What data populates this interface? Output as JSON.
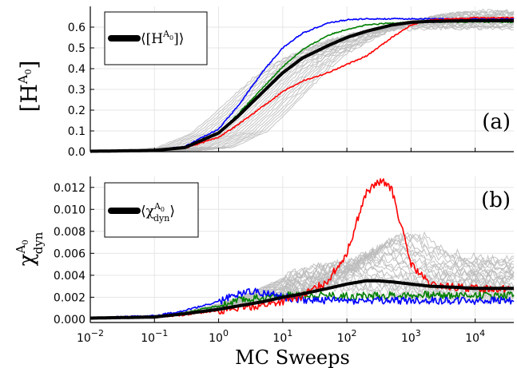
{
  "chart_data": [
    {
      "type": "line",
      "panel_label": "(a)",
      "ylabel": {
        "base": "[H",
        "sup": "A",
        "sub": "0",
        "close": "]"
      },
      "xlabel": "",
      "xscale": "log",
      "xlim": [
        0.01,
        40000
      ],
      "ylim": [
        0,
        0.7
      ],
      "yticks": [
        "0.0",
        "0.1",
        "0.2",
        "0.3",
        "0.4",
        "0.5",
        "0.6"
      ],
      "grid": true,
      "legend": {
        "position": "top-left",
        "label_base": "⟨[H",
        "label_sup": "A",
        "label_sub": "0",
        "label_close": "]⟩",
        "color": "#000000"
      },
      "colors": {
        "mean": "#000000",
        "highlight_red": "#ff0000",
        "highlight_blue": "#0000ff",
        "highlight_green": "#008000",
        "samples": "#bbbbbb"
      },
      "series": [
        {
          "color_key": "mean",
          "x": [
            0.01,
            0.1,
            0.3,
            1,
            2,
            5,
            10,
            20,
            50,
            100,
            200,
            500,
            1000,
            2000,
            5000,
            10000,
            40000
          ],
          "values": [
            0.002,
            0.006,
            0.02,
            0.09,
            0.17,
            0.29,
            0.38,
            0.45,
            0.51,
            0.55,
            0.58,
            0.61,
            0.623,
            0.628,
            0.63,
            0.631,
            0.631
          ]
        },
        {
          "color_key": "highlight_red",
          "x": [
            0.01,
            0.1,
            0.3,
            1,
            2,
            5,
            10,
            20,
            50,
            100,
            200,
            500,
            1000,
            2000,
            5000,
            10000,
            40000
          ],
          "values": [
            0.002,
            0.005,
            0.017,
            0.07,
            0.13,
            0.22,
            0.29,
            0.34,
            0.38,
            0.42,
            0.46,
            0.55,
            0.61,
            0.635,
            0.64,
            0.645,
            0.645
          ]
        },
        {
          "color_key": "highlight_blue",
          "x": [
            0.01,
            0.1,
            0.3,
            1,
            2,
            5,
            10,
            20,
            50,
            100,
            200,
            500,
            1000,
            2000,
            5000,
            10000,
            40000
          ],
          "values": [
            0.002,
            0.007,
            0.025,
            0.11,
            0.22,
            0.39,
            0.5,
            0.57,
            0.62,
            0.635,
            0.64,
            0.64,
            0.64,
            0.64,
            0.64,
            0.64,
            0.64
          ]
        },
        {
          "color_key": "highlight_green",
          "x": [
            0.01,
            0.1,
            0.3,
            1,
            2,
            5,
            10,
            20,
            50,
            100,
            200,
            500,
            1000,
            2000,
            5000,
            10000,
            40000
          ],
          "values": [
            0.002,
            0.006,
            0.021,
            0.09,
            0.18,
            0.31,
            0.41,
            0.49,
            0.56,
            0.59,
            0.61,
            0.62,
            0.625,
            0.625,
            0.625,
            0.625,
            0.625
          ]
        }
      ],
      "sample_bundle": {
        "color_key": "samples",
        "count": 24,
        "upper_shift": 0.45,
        "lower_shift": -0.75,
        "final_low": 0.585,
        "final_high": 0.69
      }
    },
    {
      "type": "line",
      "panel_label": "(b)",
      "ylabel": {
        "base": "χ",
        "sup": "A",
        "sub_sup": "0",
        "sub": "dyn"
      },
      "xlabel": "MC Sweeps",
      "xscale": "log",
      "xlim": [
        0.01,
        40000
      ],
      "ylim": [
        -0.0003,
        0.013
      ],
      "yticks": [
        "0.000",
        "0.002",
        "0.004",
        "0.006",
        "0.008",
        "0.010",
        "0.012"
      ],
      "xticks": [
        {
          "base": "10",
          "exp": "−2"
        },
        {
          "base": "10",
          "exp": "−1"
        },
        {
          "base": "10",
          "exp": "0"
        },
        {
          "base": "10",
          "exp": "1"
        },
        {
          "base": "10",
          "exp": "2"
        },
        {
          "base": "10",
          "exp": "3"
        },
        {
          "base": "10",
          "exp": "4"
        }
      ],
      "grid": true,
      "legend": {
        "position": "top-left",
        "label_base": "⟨χ",
        "label_sup": "A",
        "label_sup_sub": "0",
        "label_sub": "dyn",
        "label_close": "⟩",
        "color": "#000000"
      },
      "series": [
        {
          "color_key": "mean",
          "x": [
            0.01,
            0.1,
            0.3,
            1,
            2,
            5,
            10,
            20,
            50,
            100,
            200,
            300,
            500,
            1000,
            2000,
            5000,
            10000,
            40000
          ],
          "values": [
            0.0001,
            0.0002,
            0.0005,
            0.0009,
            0.0012,
            0.0016,
            0.002,
            0.0023,
            0.0028,
            0.0032,
            0.0035,
            0.0035,
            0.0034,
            0.0032,
            0.003,
            0.0029,
            0.0028,
            0.0028
          ]
        },
        {
          "color_key": "highlight_red",
          "x": [
            0.01,
            0.1,
            0.3,
            1,
            2,
            5,
            10,
            20,
            50,
            100,
            150,
            200,
            300,
            400,
            500,
            700,
            1000,
            2000,
            5000,
            10000,
            40000
          ],
          "values": [
            0.0001,
            0.0002,
            0.0004,
            0.0008,
            0.001,
            0.0013,
            0.0016,
            0.0021,
            0.0035,
            0.006,
            0.0093,
            0.0115,
            0.0124,
            0.0125,
            0.0118,
            0.0085,
            0.005,
            0.0031,
            0.0029,
            0.0028,
            0.0028
          ]
        },
        {
          "color_key": "highlight_blue",
          "x": [
            0.01,
            0.1,
            0.3,
            1,
            2,
            3,
            5,
            10,
            20,
            50,
            100,
            1000,
            10000,
            40000
          ],
          "values": [
            0.0001,
            0.0003,
            0.0008,
            0.0016,
            0.0023,
            0.0026,
            0.0024,
            0.002,
            0.0018,
            0.0017,
            0.0017,
            0.0017,
            0.0017,
            0.0017
          ]
        },
        {
          "color_key": "highlight_green",
          "x": [
            0.01,
            0.1,
            0.3,
            1,
            2,
            5,
            10,
            20,
            50,
            100,
            1000,
            10000,
            40000
          ],
          "values": [
            0.0001,
            0.0002,
            0.0006,
            0.0012,
            0.0017,
            0.002,
            0.0021,
            0.0022,
            0.0022,
            0.0021,
            0.0022,
            0.0022,
            0.0022
          ]
        }
      ],
      "sample_bundle": {
        "color_key": "samples",
        "count": 24,
        "peak_low": 0.0028,
        "peak_high": 0.0078,
        "final_low": 0.0018,
        "final_high": 0.0055
      }
    }
  ]
}
